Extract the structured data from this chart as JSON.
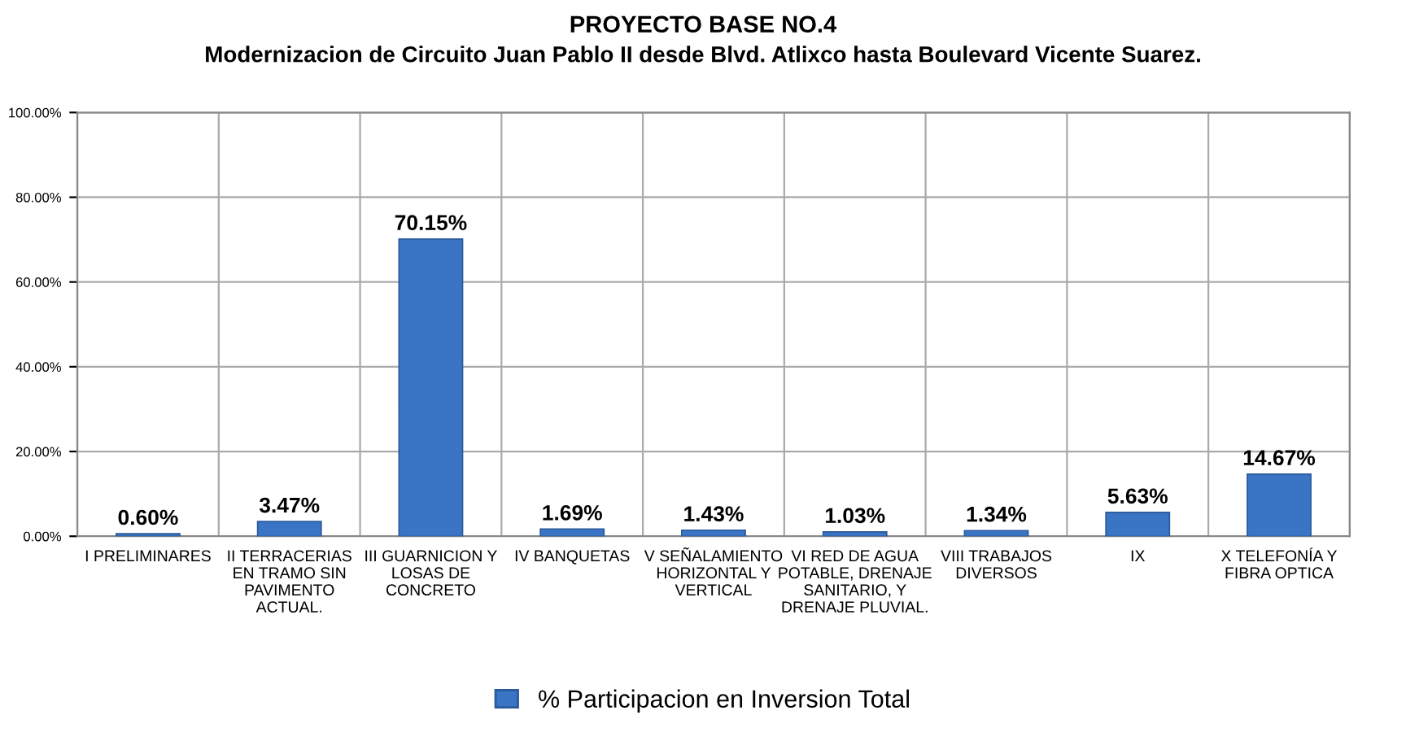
{
  "chart_data": {
    "type": "bar",
    "title": "PROYECTO BASE NO.4",
    "subtitle": "Modernizacion de Circuito Juan Pablo II desde Blvd. Atlixco hasta Boulevard Vicente Suarez.",
    "categories": [
      "I PRELIMINARES",
      "II TERRACERIAS EN TRAMO SIN PAVIMENTO ACTUAL.",
      "III GUARNICION Y LOSAS DE CONCRETO",
      "IV BANQUETAS",
      "V SEÑALAMIENTO HORIZONTAL Y VERTICAL",
      "VI RED DE AGUA POTABLE, DRENAJE SANITARIO, Y DRENAJE PLUVIAL.",
      "VIII TRABAJOS DIVERSOS",
      "IX",
      "X TELEFONÍA Y FIBRA OPTICA"
    ],
    "series": [
      {
        "name": "% Participacion en Inversion Total",
        "color": "#3a74c4",
        "values": [
          0.6,
          3.47,
          70.15,
          1.69,
          1.43,
          1.03,
          1.34,
          5.63,
          14.67
        ],
        "value_labels": [
          "0.60%",
          "3.47%",
          "70.15%",
          "1.69%",
          "1.43%",
          "1.03%",
          "1.34%",
          "5.63%",
          "14.67%"
        ]
      }
    ],
    "ylim": [
      0,
      100
    ],
    "yticks": [
      {
        "value": 0,
        "label": "0.00%"
      },
      {
        "value": 20,
        "label": "20.00%"
      },
      {
        "value": 40,
        "label": "40.00%"
      },
      {
        "value": 60,
        "label": "60.00%"
      },
      {
        "value": 80,
        "label": "80.00%"
      },
      {
        "value": 100,
        "label": "100.00%"
      }
    ],
    "grid": true,
    "legend": "bottom"
  }
}
